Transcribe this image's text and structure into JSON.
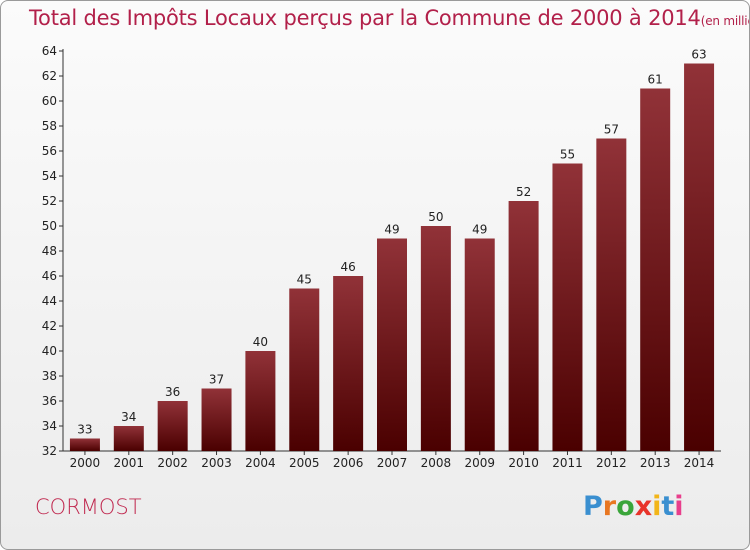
{
  "title": "Total des Impôts Locaux perçus par la Commune de 2000 à 2014",
  "title_unit": "(en milliers d'€)",
  "commune": "CORMOST",
  "logo_text": "Proxiti",
  "logo_colors": [
    "#3a8fd0",
    "#e87722",
    "#3aa53a",
    "#e8332a",
    "#f2b519",
    "#3a8fd0",
    "#e83e8c"
  ],
  "colors": {
    "title": "#b2204a",
    "bar_top": "#913238",
    "bar_bottom": "#4a0000",
    "axis": "#333333",
    "grid": "#cccccc"
  },
  "chart_data": {
    "type": "bar",
    "title": "Total des Impôts Locaux perçus par la Commune de 2000 à 2014",
    "xlabel": "",
    "ylabel": "",
    "categories": [
      "2000",
      "2001",
      "2002",
      "2003",
      "2004",
      "2005",
      "2006",
      "2007",
      "2008",
      "2009",
      "2010",
      "2011",
      "2012",
      "2013",
      "2014"
    ],
    "values": [
      33,
      34,
      36,
      37,
      40,
      45,
      46,
      49,
      50,
      49,
      52,
      55,
      57,
      61,
      63
    ],
    "ylim": [
      32,
      64
    ],
    "yticks": [
      32,
      34,
      36,
      38,
      40,
      42,
      44,
      46,
      48,
      50,
      52,
      54,
      56,
      58,
      60,
      62,
      64
    ],
    "data_labels": true,
    "grid": false
  }
}
